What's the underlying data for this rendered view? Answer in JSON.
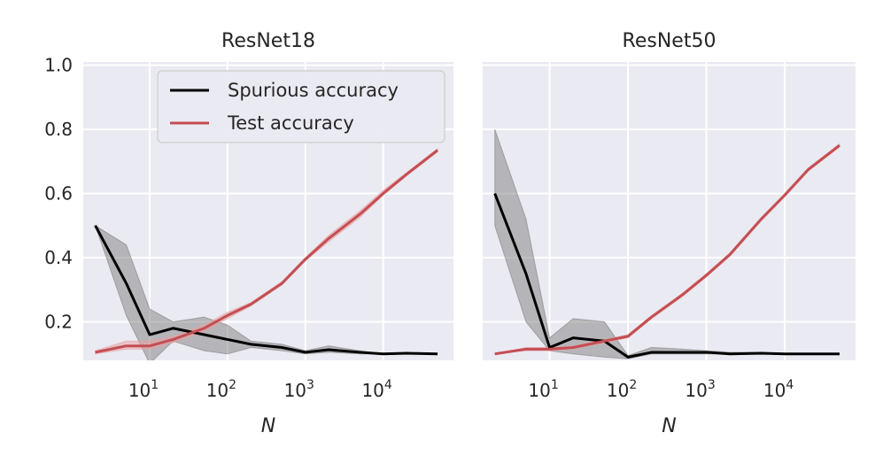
{
  "chart_data": [
    {
      "type": "line",
      "title": "ResNet18",
      "xlabel": "N",
      "ylabel": "",
      "xscale": "log",
      "xlim": [
        1.4,
        80000
      ],
      "ylim": [
        0.08,
        1.01
      ],
      "xticks": [
        10,
        100,
        1000,
        10000
      ],
      "xtick_labels": [
        {
          "base": "10",
          "exp": "1"
        },
        {
          "base": "10",
          "exp": "2"
        },
        {
          "base": "10",
          "exp": "3"
        },
        {
          "base": "10",
          "exp": "4"
        }
      ],
      "yticks": [
        0.2,
        0.4,
        0.6,
        0.8,
        1.0
      ],
      "ytick_labels": [
        "0.2",
        "0.4",
        "0.6",
        "0.8",
        "1.0"
      ],
      "grid": true,
      "legend": "top-right",
      "series": [
        {
          "name": "Spurious accuracy",
          "color": "#000000",
          "band_color": "#808080",
          "x": [
            2,
            5,
            10,
            20,
            50,
            100,
            200,
            500,
            1000,
            2000,
            5000,
            10000,
            20000,
            50000
          ],
          "y": [
            0.5,
            0.32,
            0.16,
            0.18,
            0.16,
            0.145,
            0.13,
            0.12,
            0.105,
            0.113,
            0.105,
            0.1,
            0.102,
            0.1
          ],
          "lower": [
            0.5,
            0.22,
            0.07,
            0.14,
            0.11,
            0.1,
            0.12,
            0.11,
            0.1,
            0.105,
            0.1,
            0.1,
            0.1,
            0.1
          ],
          "upper": [
            0.5,
            0.44,
            0.24,
            0.2,
            0.215,
            0.19,
            0.14,
            0.13,
            0.11,
            0.125,
            0.11,
            0.1,
            0.104,
            0.1
          ]
        },
        {
          "name": "Test accuracy",
          "color": "#c44e52",
          "band_color": "#e8a0a2",
          "x": [
            2,
            5,
            10,
            20,
            50,
            100,
            200,
            500,
            1000,
            2000,
            5000,
            10000,
            20000,
            50000
          ],
          "y": [
            0.105,
            0.125,
            0.125,
            0.145,
            0.18,
            0.22,
            0.255,
            0.32,
            0.395,
            0.46,
            0.535,
            0.6,
            0.66,
            0.735
          ],
          "lower": [
            0.1,
            0.115,
            0.115,
            0.135,
            0.17,
            0.21,
            0.25,
            0.315,
            0.39,
            0.45,
            0.525,
            0.595,
            0.655,
            0.73
          ],
          "upper": [
            0.11,
            0.14,
            0.14,
            0.155,
            0.19,
            0.23,
            0.26,
            0.325,
            0.4,
            0.47,
            0.545,
            0.61,
            0.665,
            0.74
          ]
        }
      ]
    },
    {
      "type": "line",
      "title": "ResNet50",
      "xlabel": "N",
      "ylabel": "",
      "xscale": "log",
      "xlim": [
        1.4,
        80000
      ],
      "ylim": [
        0.08,
        1.01
      ],
      "xticks": [
        10,
        100,
        1000,
        10000
      ],
      "xtick_labels": [
        {
          "base": "10",
          "exp": "1"
        },
        {
          "base": "10",
          "exp": "2"
        },
        {
          "base": "10",
          "exp": "3"
        },
        {
          "base": "10",
          "exp": "4"
        }
      ],
      "yticks": [
        0.2,
        0.4,
        0.6,
        0.8,
        1.0
      ],
      "ytick_labels": [],
      "grid": true,
      "series": [
        {
          "name": "Spurious accuracy",
          "color": "#000000",
          "band_color": "#808080",
          "x": [
            2,
            5,
            10,
            20,
            50,
            100,
            200,
            500,
            1000,
            2000,
            5000,
            10000,
            20000,
            50000
          ],
          "y": [
            0.6,
            0.35,
            0.12,
            0.15,
            0.14,
            0.09,
            0.105,
            0.105,
            0.105,
            0.1,
            0.102,
            0.1,
            0.1,
            0.1
          ],
          "lower": [
            0.5,
            0.2,
            0.11,
            0.1,
            0.09,
            0.085,
            0.1,
            0.1,
            0.1,
            0.1,
            0.1,
            0.1,
            0.1,
            0.1
          ],
          "upper": [
            0.8,
            0.52,
            0.15,
            0.21,
            0.2,
            0.095,
            0.12,
            0.115,
            0.11,
            0.105,
            0.105,
            0.1,
            0.1,
            0.1
          ]
        },
        {
          "name": "Test accuracy",
          "color": "#c44e52",
          "band_color": "#e8a0a2",
          "x": [
            2,
            5,
            10,
            20,
            50,
            100,
            200,
            500,
            1000,
            2000,
            5000,
            10000,
            20000,
            50000
          ],
          "y": [
            0.1,
            0.115,
            0.115,
            0.12,
            0.14,
            0.155,
            0.215,
            0.285,
            0.345,
            0.41,
            0.52,
            0.595,
            0.675,
            0.75
          ],
          "lower": [
            0.1,
            0.11,
            0.11,
            0.115,
            0.135,
            0.15,
            0.21,
            0.28,
            0.34,
            0.405,
            0.515,
            0.59,
            0.67,
            0.745
          ],
          "upper": [
            0.1,
            0.12,
            0.12,
            0.125,
            0.145,
            0.16,
            0.22,
            0.29,
            0.35,
            0.415,
            0.525,
            0.6,
            0.68,
            0.755
          ]
        }
      ]
    }
  ]
}
